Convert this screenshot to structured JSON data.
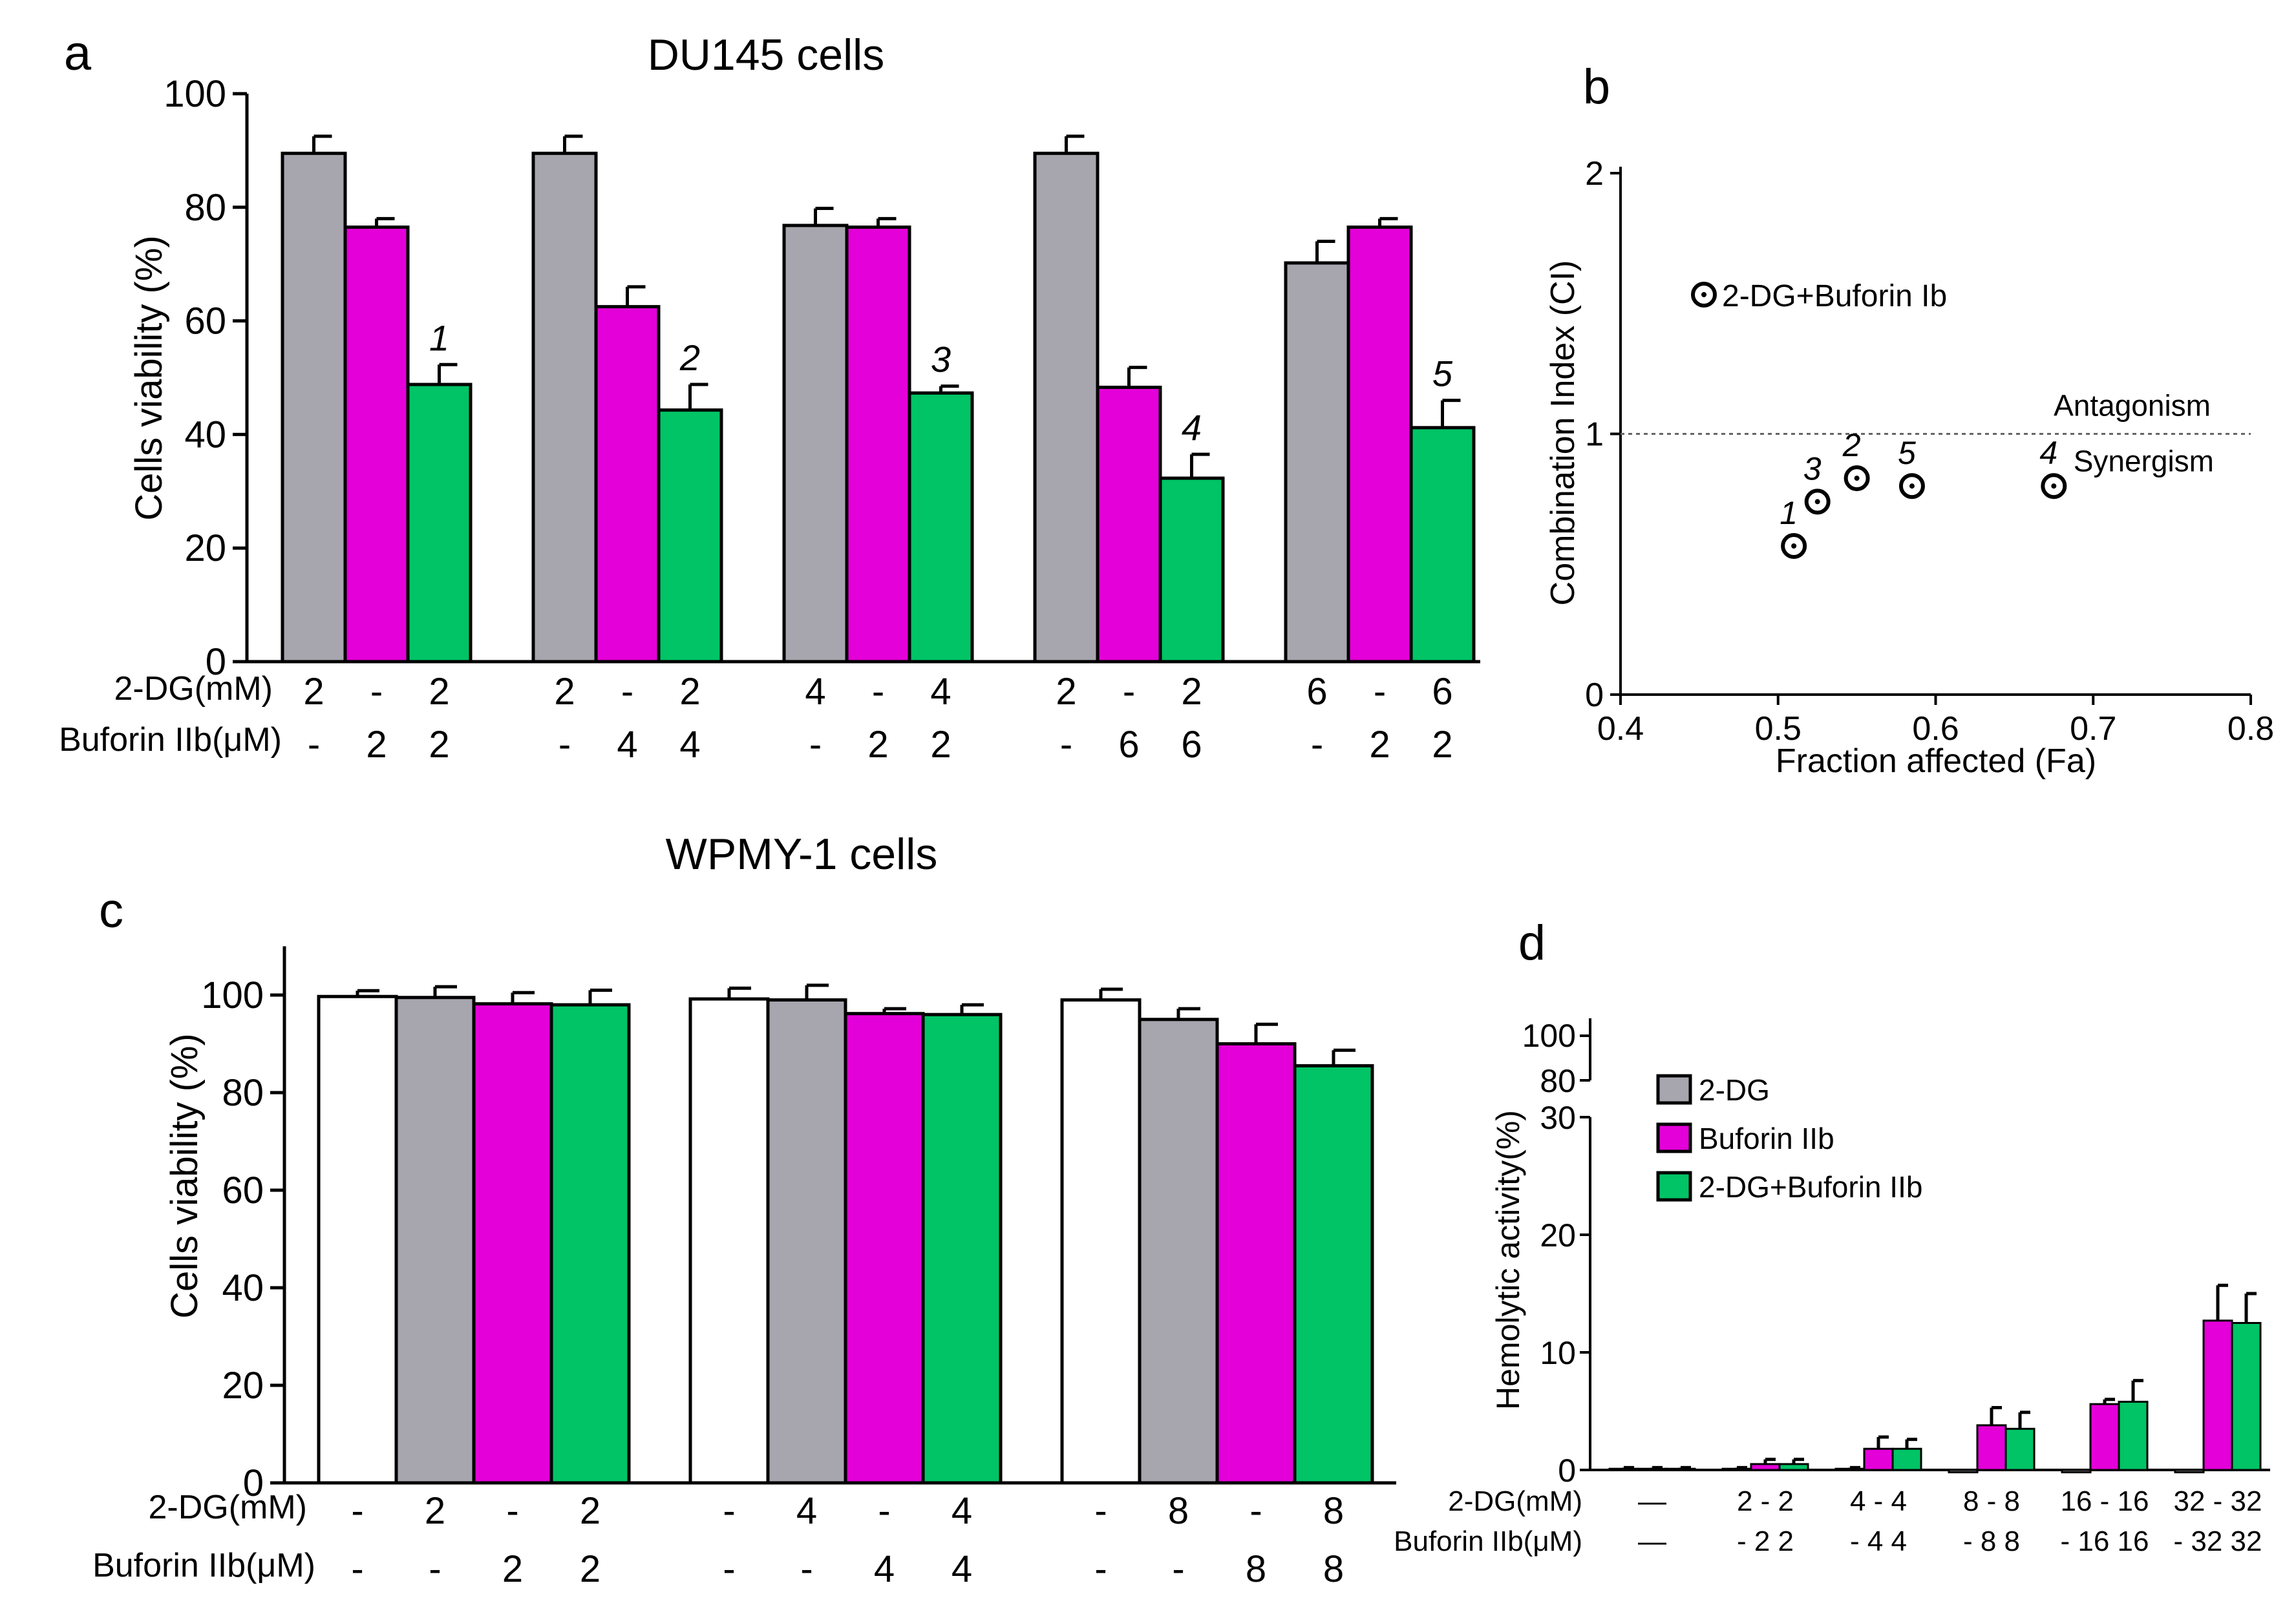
{
  "colors": {
    "gray": "#a7a6ae",
    "magenta": "#e400d8",
    "green": "#00c466",
    "white": "#ffffff",
    "black": "#000000"
  },
  "chart_data": [
    {
      "panel": "a",
      "type": "bar",
      "title": "DU145 cells",
      "ylabel": "Cells viability (%)",
      "ylim": [
        0,
        100
      ],
      "yticks": [
        0,
        20,
        40,
        60,
        80,
        100
      ],
      "row_labels": [
        "2-DG(mM)",
        "Buforin IIb(μM)"
      ],
      "groups": [
        {
          "bars": [
            {
              "color": "gray",
              "value": 89.5,
              "err": 3,
              "dg": "2",
              "buf": "-"
            },
            {
              "color": "magenta",
              "value": 76.5,
              "err": 1.5,
              "dg": "-",
              "buf": "2"
            },
            {
              "color": "green",
              "value": 48.8,
              "err": 3.5,
              "dg": "2",
              "buf": "2",
              "label": "1"
            }
          ]
        },
        {
          "bars": [
            {
              "color": "gray",
              "value": 89.5,
              "err": 3,
              "dg": "2",
              "buf": "-"
            },
            {
              "color": "magenta",
              "value": 62.5,
              "err": 3.5,
              "dg": "-",
              "buf": "4"
            },
            {
              "color": "green",
              "value": 44.3,
              "err": 4.5,
              "dg": "2",
              "buf": "4",
              "label": "2"
            }
          ]
        },
        {
          "bars": [
            {
              "color": "gray",
              "value": 76.8,
              "err": 3,
              "dg": "4",
              "buf": "-"
            },
            {
              "color": "magenta",
              "value": 76.5,
              "err": 1.5,
              "dg": "-",
              "buf": "2"
            },
            {
              "color": "green",
              "value": 47.3,
              "err": 1.2,
              "dg": "4",
              "buf": "2",
              "label": "3"
            }
          ]
        },
        {
          "bars": [
            {
              "color": "gray",
              "value": 89.5,
              "err": 3,
              "dg": "2",
              "buf": "-"
            },
            {
              "color": "magenta",
              "value": 48.3,
              "err": 3.5,
              "dg": "-",
              "buf": "6"
            },
            {
              "color": "green",
              "value": 32.3,
              "err": 4.2,
              "dg": "2",
              "buf": "6",
              "label": "4"
            }
          ]
        },
        {
          "bars": [
            {
              "color": "gray",
              "value": 70.2,
              "err": 3.8,
              "dg": "6",
              "buf": "-"
            },
            {
              "color": "magenta",
              "value": 76.5,
              "err": 1.5,
              "dg": "-",
              "buf": "2"
            },
            {
              "color": "green",
              "value": 41.2,
              "err": 4.8,
              "dg": "6",
              "buf": "2",
              "label": "5"
            }
          ]
        }
      ]
    },
    {
      "panel": "b",
      "type": "scatter",
      "xlabel": "Fraction affected (Fa)",
      "ylabel": "Combination Index (CI)",
      "xlim": [
        0.4,
        0.8
      ],
      "ylim": [
        0,
        2
      ],
      "xticks": [
        "0.4",
        "0.5",
        "0.6",
        "0.7",
        "0.8"
      ],
      "yticks": [
        "0",
        "1",
        "2"
      ],
      "legend": "2-DG+Buforin Ib",
      "reference_line": {
        "y": 1.0,
        "above": "Antagonism",
        "below": "Synergism"
      },
      "points": [
        {
          "label": "1",
          "x": 0.51,
          "y": 0.57
        },
        {
          "label": "3",
          "x": 0.525,
          "y": 0.74
        },
        {
          "label": "2",
          "x": 0.55,
          "y": 0.83
        },
        {
          "label": "5",
          "x": 0.585,
          "y": 0.8
        },
        {
          "label": "4",
          "x": 0.675,
          "y": 0.8
        }
      ]
    },
    {
      "panel": "c",
      "type": "bar",
      "title": "WPMY-1 cells",
      "ylabel": "Cells viability (%)",
      "ylim": [
        0,
        110
      ],
      "yticks": [
        0,
        20,
        40,
        60,
        80,
        100
      ],
      "row_labels": [
        "2-DG(mM)",
        "Buforin IIb(μM)"
      ],
      "groups": [
        {
          "bars": [
            {
              "color": "white",
              "value": 99.7,
              "err": 1.2,
              "dg": "-",
              "buf": "-"
            },
            {
              "color": "gray",
              "value": 99.5,
              "err": 2.2,
              "dg": "2",
              "buf": "-"
            },
            {
              "color": "magenta",
              "value": 98.2,
              "err": 2.3,
              "dg": "-",
              "buf": "2"
            },
            {
              "color": "green",
              "value": 98.0,
              "err": 3,
              "dg": "2",
              "buf": "2"
            }
          ]
        },
        {
          "bars": [
            {
              "color": "white",
              "value": 99.2,
              "err": 2.2,
              "dg": "-",
              "buf": "-"
            },
            {
              "color": "gray",
              "value": 99.0,
              "err": 3,
              "dg": "4",
              "buf": "-"
            },
            {
              "color": "magenta",
              "value": 96.2,
              "err": 1,
              "dg": "-",
              "buf": "4"
            },
            {
              "color": "green",
              "value": 96.0,
              "err": 2,
              "dg": "4",
              "buf": "4"
            }
          ]
        },
        {
          "bars": [
            {
              "color": "white",
              "value": 99.0,
              "err": 2.2,
              "dg": "-",
              "buf": "-"
            },
            {
              "color": "gray",
              "value": 95.0,
              "err": 2.2,
              "dg": "8",
              "buf": "-"
            },
            {
              "color": "magenta",
              "value": 90.0,
              "err": 4,
              "dg": "-",
              "buf": "8"
            },
            {
              "color": "green",
              "value": 85.5,
              "err": 3.2,
              "dg": "8",
              "buf": "8"
            }
          ]
        }
      ]
    },
    {
      "panel": "d",
      "type": "bar",
      "ylabel": "Hemolytic activity(%)",
      "ylim": [
        0,
        30
      ],
      "yticks": [
        "0",
        "10",
        "20",
        "30"
      ],
      "upper_ticks": [
        "80",
        "100"
      ],
      "row_labels": [
        "2-DG(mM)",
        "Buforin IIb(μM)"
      ],
      "legend": [
        {
          "color": "gray",
          "name": "2-DG"
        },
        {
          "color": "magenta",
          "name": "Buforin IIb"
        },
        {
          "color": "green",
          "name": "2-DG+Buforin IIb"
        }
      ],
      "groups": [
        {
          "dg": "—",
          "buf": "—",
          "values": [
            0.1,
            0.1,
            0.1
          ],
          "errs": [
            0.1,
            0.1,
            0.1
          ]
        },
        {
          "dg": "2 - 2",
          "buf": "- 2 2",
          "values": [
            0.1,
            0.5,
            0.5
          ],
          "errs": [
            0.1,
            0.4,
            0.4
          ]
        },
        {
          "dg": "4 - 4",
          "buf": "- 4 4",
          "values": [
            0.1,
            1.8,
            1.8
          ],
          "errs": [
            0.1,
            1.0,
            0.8
          ]
        },
        {
          "dg": "8 - 8",
          "buf": "- 8 8",
          "values": [
            -0.2,
            3.8,
            3.5
          ],
          "errs": [
            0.1,
            1.5,
            1.4
          ]
        },
        {
          "dg": "16 - 16",
          "buf": "- 16 16",
          "values": [
            -0.2,
            5.6,
            5.8
          ],
          "errs": [
            0.1,
            0.4,
            1.8
          ]
        },
        {
          "dg": "32 - 32",
          "buf": "- 32 32",
          "values": [
            -0.2,
            12.7,
            12.5
          ],
          "errs": [
            0.1,
            3.0,
            2.5
          ]
        }
      ]
    }
  ],
  "panel_labels": [
    "a",
    "b",
    "c",
    "d"
  ]
}
